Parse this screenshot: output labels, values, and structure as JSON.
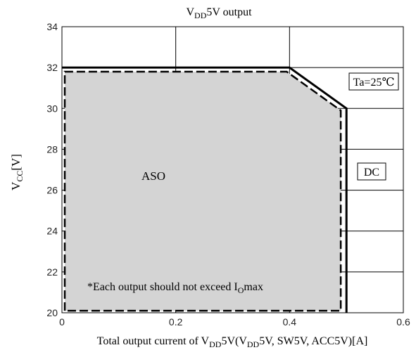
{
  "chart_data": {
    "type": "line",
    "title": {
      "main": "V",
      "sub": "DD",
      "rest": "5V output"
    },
    "xlabel": {
      "parts": [
        {
          "t": "Total output current of V"
        },
        {
          "t": "DD",
          "sub": true
        },
        {
          "t": "5V(V"
        },
        {
          "t": "DD",
          "sub": true
        },
        {
          "t": "5V, SW5V, ACC5V)[A]"
        }
      ]
    },
    "ylabel": {
      "main": "V",
      "sub": "CC",
      "rest": "[V]"
    },
    "xlim": [
      0,
      0.6
    ],
    "ylim": [
      20,
      34
    ],
    "xticks": [
      "0",
      "0.2",
      "0.4",
      "0.6"
    ],
    "xtick_values": [
      0,
      0.2,
      0.4,
      0.6
    ],
    "yticks": [
      "20",
      "22",
      "24",
      "26",
      "28",
      "30",
      "32",
      "34"
    ],
    "ytick_values": [
      20,
      22,
      24,
      26,
      28,
      30,
      32,
      34
    ],
    "x_gridlines": [
      0.2,
      0.4
    ],
    "y_gridlines": [
      22,
      24,
      26,
      28,
      30,
      32
    ],
    "grid": true,
    "series": [
      {
        "name": "DC",
        "style": "solid",
        "x": [
          0,
          0.4,
          0.5,
          0.5
        ],
        "y": [
          32,
          32,
          30,
          20
        ]
      },
      {
        "style": "dashed",
        "fill": "#d4d4d4",
        "x": [
          0.005,
          0.005,
          0.395,
          0.49,
          0.49
        ],
        "y": [
          20.1,
          31.8,
          31.8,
          29.9,
          20.1
        ]
      }
    ],
    "annotations": {
      "condition": "Ta=25℃",
      "region": "ASO",
      "dc_label": "DC",
      "note": {
        "main": "*Each output should not exceed I",
        "sub": "O",
        "rest": "max"
      }
    }
  }
}
